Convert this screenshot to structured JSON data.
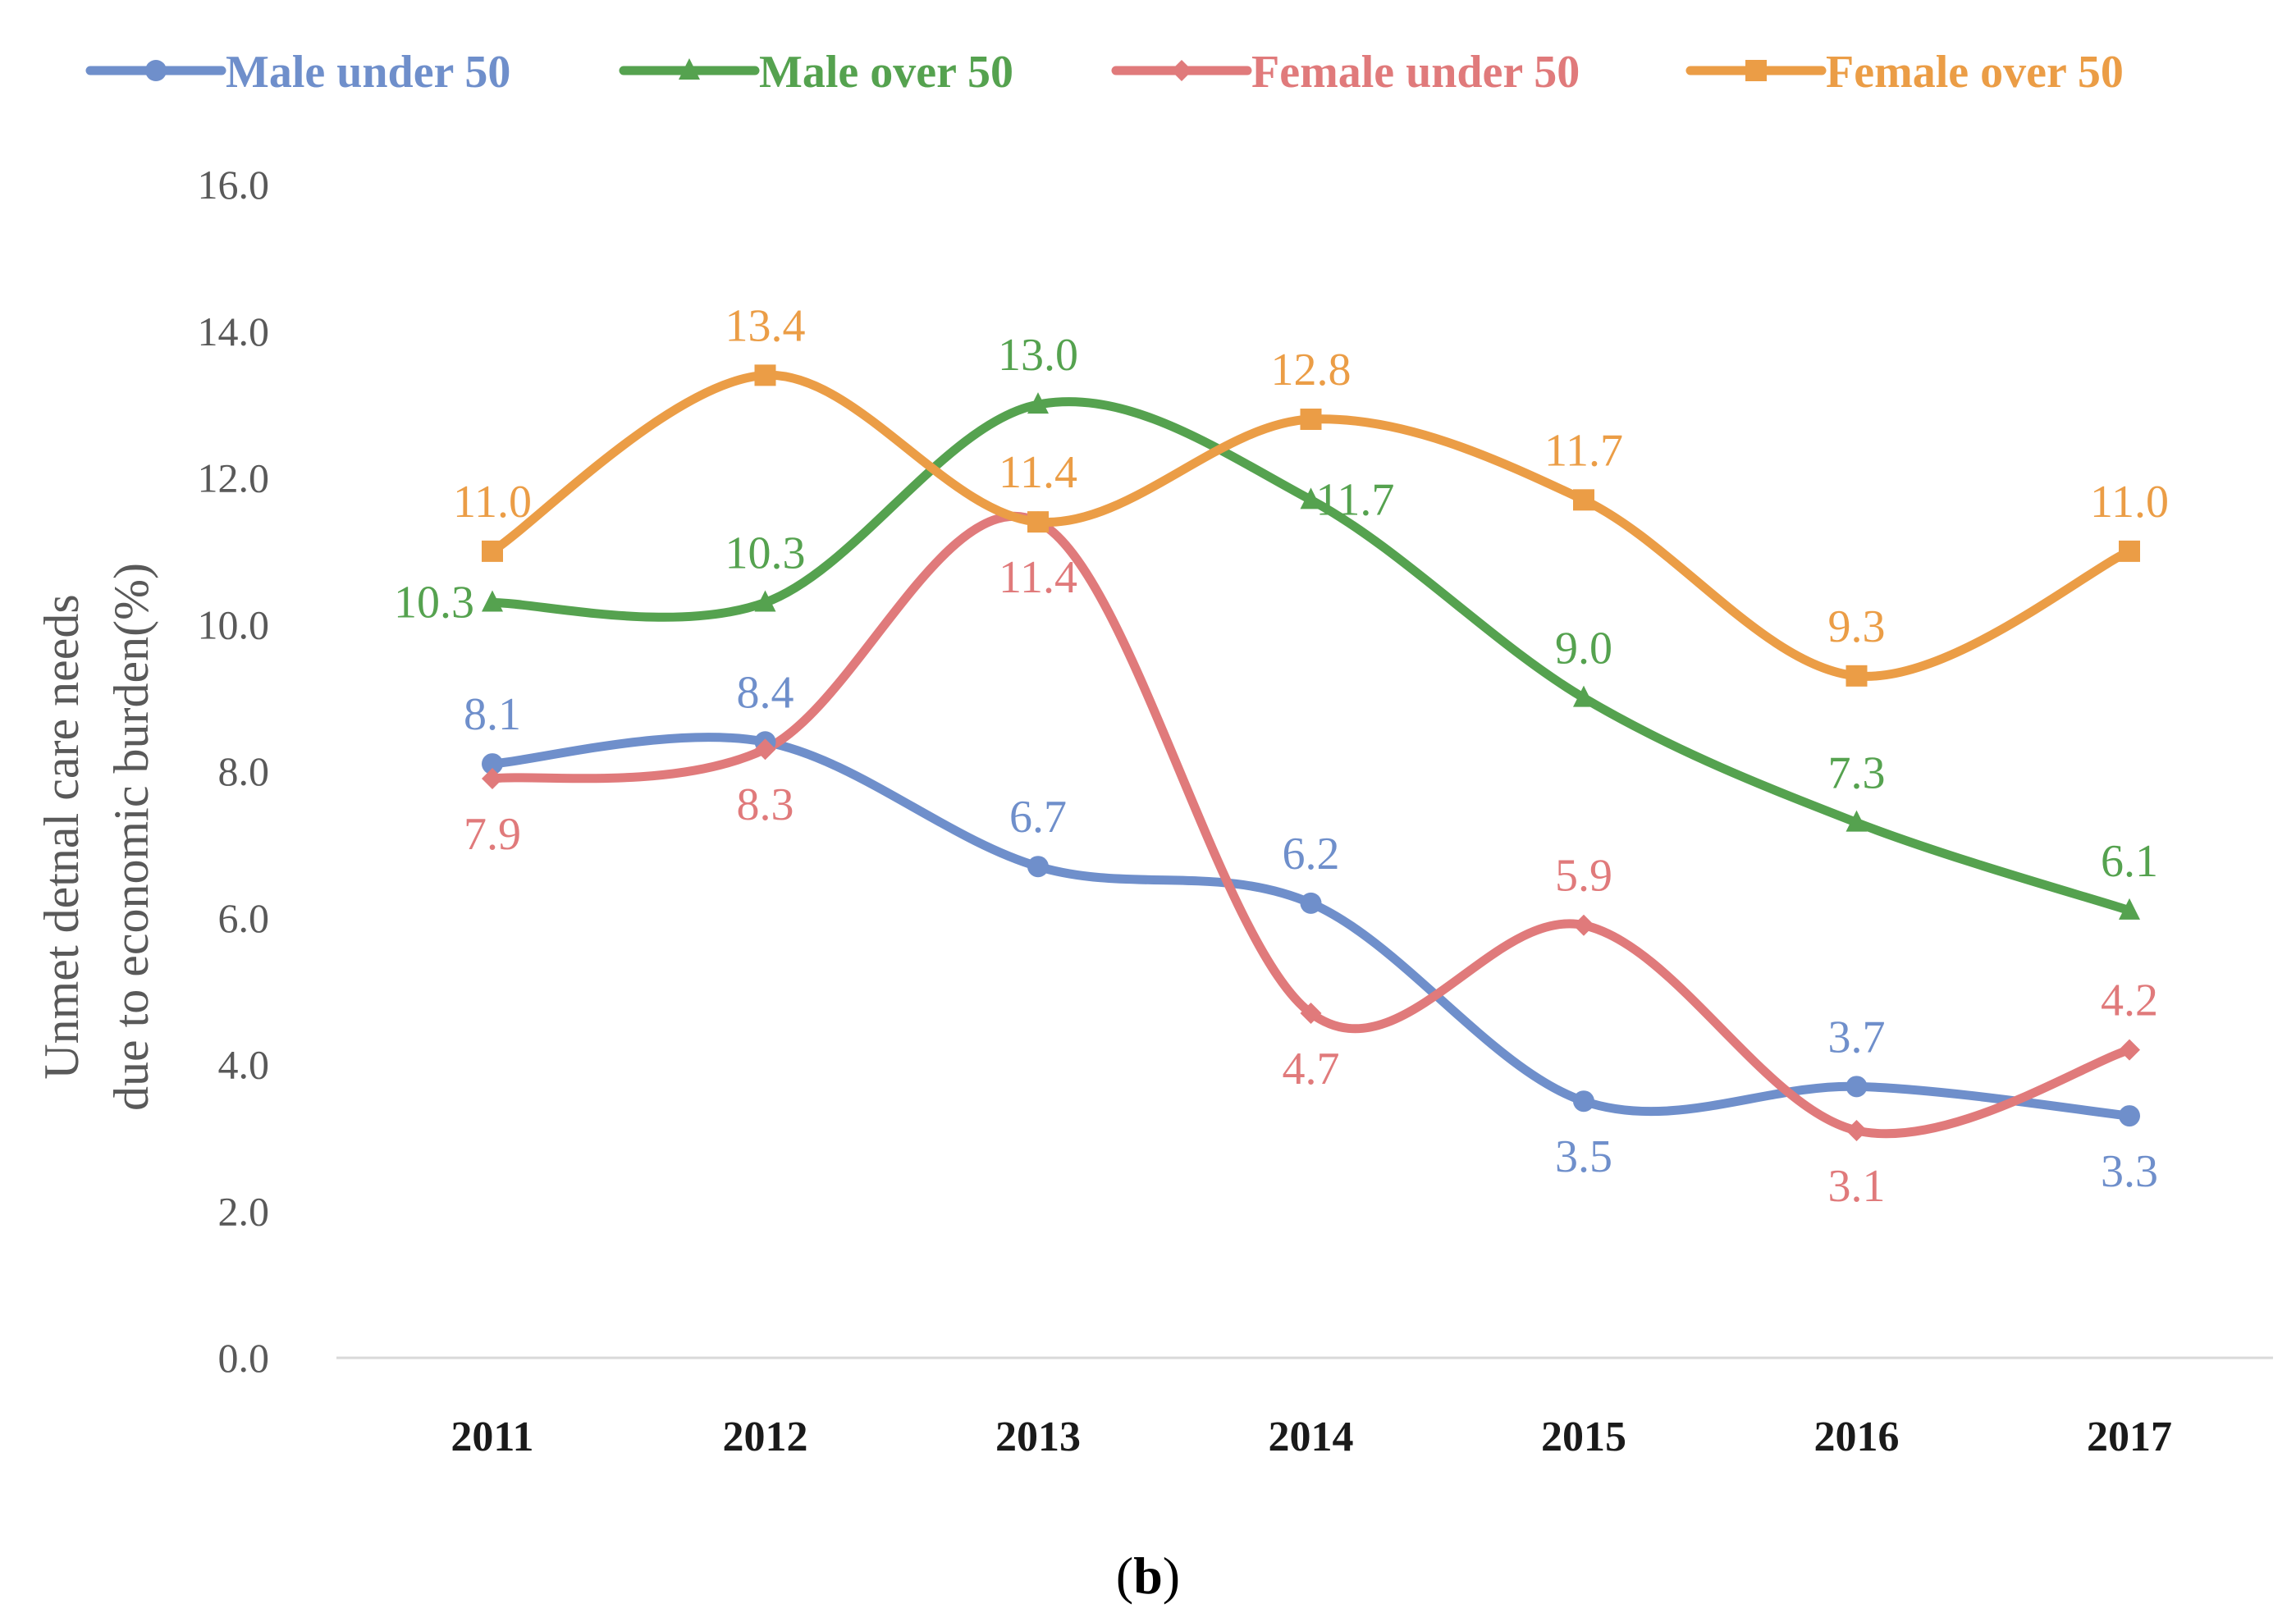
{
  "chart_data": {
    "type": "line",
    "title": "",
    "caption_open": "(",
    "caption_letter": "b",
    "caption_close": ")",
    "xlabel": "",
    "ylabel_line1": "Unmet detnal care needs",
    "ylabel_line2": "due to economic burden(%)",
    "ylim": [
      0,
      16
    ],
    "y_ticks": [
      "0.0",
      "2.0",
      "4.0",
      "6.0",
      "8.0",
      "10.0",
      "12.0",
      "14.0",
      "16.0"
    ],
    "y_tick_values": [
      0,
      2,
      4,
      6,
      8,
      10,
      12,
      14,
      16
    ],
    "categories": [
      "2011",
      "2012",
      "2013",
      "2014",
      "2015",
      "2016",
      "2017"
    ],
    "gridlines": false,
    "legend_position": "top",
    "series": [
      {
        "name": "Male under 50",
        "color": "#6f8fcb",
        "marker": "circle",
        "values": [
          8.1,
          8.4,
          6.7,
          6.2,
          3.5,
          3.7,
          3.3
        ],
        "labels": [
          "8.1",
          "8.4",
          "6.7",
          "6.2",
          "3.5",
          "3.7",
          "3.3"
        ],
        "label_side": [
          "above",
          "above",
          "above",
          "above",
          "below",
          "above",
          "below"
        ]
      },
      {
        "name": "Male over 50",
        "color": "#55a24f",
        "marker": "triangle",
        "values": [
          10.3,
          10.3,
          13.0,
          11.7,
          9.0,
          7.3,
          6.1
        ],
        "labels": [
          "10.3",
          "10.3",
          "13.0",
          "11.7",
          "9.0",
          "7.3",
          "6.1"
        ],
        "label_side": [
          "left",
          "above",
          "above",
          "right",
          "above",
          "above",
          "above"
        ]
      },
      {
        "name": "Female under 50",
        "color": "#e07a7b",
        "marker": "diamond",
        "values": [
          7.9,
          8.3,
          11.4,
          4.7,
          5.9,
          3.1,
          4.2
        ],
        "labels": [
          "7.9",
          "8.3",
          "11.4",
          "4.7",
          "5.9",
          "3.1",
          "4.2"
        ],
        "label_side": [
          "below",
          "below",
          "below",
          "below",
          "above",
          "below",
          "above"
        ]
      },
      {
        "name": "Female over 50",
        "color": "#eb9d46",
        "marker": "square",
        "values": [
          11.0,
          13.4,
          11.4,
          12.8,
          11.7,
          9.3,
          11.0
        ],
        "labels": [
          "11.0",
          "13.4",
          "11.4",
          "12.8",
          "11.7",
          "9.3",
          "11.0"
        ],
        "label_side": [
          "above",
          "above",
          "above",
          "above",
          "above",
          "above",
          "above"
        ]
      }
    ]
  }
}
